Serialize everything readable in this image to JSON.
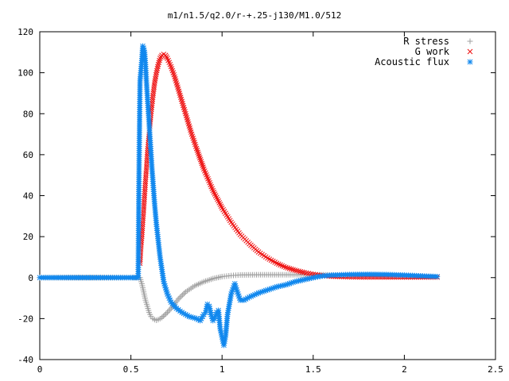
{
  "chart_data": {
    "type": "scatter",
    "title": "m1/n1.5/q2.0/r-+.25-j130/M1.0/512",
    "xlabel": "",
    "ylabel": "",
    "xlim": [
      0,
      2.5
    ],
    "ylim": [
      -40,
      120
    ],
    "xticks": [
      "0",
      "0.5",
      "1",
      "1.5",
      "2",
      "2.5"
    ],
    "yticks": [
      "-40",
      "-20",
      "0",
      "20",
      "40",
      "60",
      "80",
      "100",
      "120"
    ],
    "legend_position": "top-right",
    "grid": false,
    "series": [
      {
        "name": "R stress",
        "marker": "plus",
        "color": "#a0a0a0",
        "points": [
          [
            0.0,
            0
          ],
          [
            0.5,
            0
          ],
          [
            0.55,
            0
          ],
          [
            0.56,
            -3
          ],
          [
            0.57,
            -7
          ],
          [
            0.58,
            -11
          ],
          [
            0.59,
            -14
          ],
          [
            0.6,
            -17
          ],
          [
            0.61,
            -19
          ],
          [
            0.62,
            -20
          ],
          [
            0.63,
            -20.5
          ],
          [
            0.64,
            -20.8
          ],
          [
            0.65,
            -20.5
          ],
          [
            0.67,
            -19.5
          ],
          [
            0.7,
            -17
          ],
          [
            0.73,
            -14
          ],
          [
            0.76,
            -10.5
          ],
          [
            0.8,
            -7
          ],
          [
            0.85,
            -4
          ],
          [
            0.9,
            -2
          ],
          [
            0.95,
            -0.5
          ],
          [
            1.0,
            0.5
          ],
          [
            1.05,
            1.0
          ],
          [
            1.1,
            1.3
          ],
          [
            1.2,
            1.4
          ],
          [
            1.3,
            1.4
          ],
          [
            1.4,
            1.4
          ],
          [
            1.5,
            1.4
          ],
          [
            1.6,
            1.3
          ],
          [
            1.7,
            1.2
          ],
          [
            1.8,
            1.1
          ],
          [
            1.9,
            0.9
          ],
          [
            2.0,
            0.7
          ],
          [
            2.1,
            0.5
          ],
          [
            2.18,
            0.4
          ]
        ]
      },
      {
        "name": "G work",
        "marker": "cross",
        "color": "#ee1111",
        "points": [
          [
            0.55,
            7
          ],
          [
            0.555,
            15
          ],
          [
            0.56,
            20
          ],
          [
            0.565,
            27
          ],
          [
            0.57,
            33
          ],
          [
            0.575,
            40
          ],
          [
            0.58,
            47
          ],
          [
            0.585,
            53
          ],
          [
            0.59,
            60
          ],
          [
            0.595,
            65
          ],
          [
            0.6,
            70
          ],
          [
            0.605,
            75
          ],
          [
            0.61,
            80
          ],
          [
            0.615,
            84
          ],
          [
            0.62,
            88
          ],
          [
            0.63,
            95
          ],
          [
            0.64,
            100
          ],
          [
            0.65,
            104
          ],
          [
            0.66,
            107
          ],
          [
            0.67,
            108.5
          ],
          [
            0.68,
            109
          ],
          [
            0.69,
            108.5
          ],
          [
            0.7,
            107
          ],
          [
            0.72,
            103
          ],
          [
            0.74,
            98
          ],
          [
            0.76,
            92
          ],
          [
            0.78,
            86
          ],
          [
            0.8,
            80
          ],
          [
            0.83,
            71
          ],
          [
            0.86,
            63
          ],
          [
            0.9,
            53
          ],
          [
            0.95,
            42.5
          ],
          [
            1.0,
            34
          ],
          [
            1.05,
            27
          ],
          [
            1.1,
            21
          ],
          [
            1.15,
            16.5
          ],
          [
            1.2,
            12.5
          ],
          [
            1.25,
            9.5
          ],
          [
            1.3,
            7
          ],
          [
            1.35,
            5
          ],
          [
            1.4,
            3.6
          ],
          [
            1.45,
            2.5
          ],
          [
            1.5,
            1.6
          ],
          [
            1.55,
            1.0
          ],
          [
            1.6,
            0.6
          ],
          [
            1.7,
            0.3
          ],
          [
            1.8,
            0.2
          ],
          [
            1.9,
            0.2
          ],
          [
            2.0,
            0.2
          ],
          [
            2.1,
            0.2
          ],
          [
            2.18,
            0.2
          ]
        ]
      },
      {
        "name": "Acoustic flux",
        "marker": "star",
        "color": "#1188ee",
        "points": [
          [
            0.0,
            0
          ],
          [
            0.1,
            0
          ],
          [
            0.2,
            0
          ],
          [
            0.3,
            0
          ],
          [
            0.4,
            0
          ],
          [
            0.5,
            0
          ],
          [
            0.54,
            0
          ],
          [
            0.545,
            56
          ],
          [
            0.55,
            96
          ],
          [
            0.555,
            101
          ],
          [
            0.56,
            106
          ],
          [
            0.565,
            113
          ],
          [
            0.57,
            112
          ],
          [
            0.575,
            110
          ],
          [
            0.58,
            104
          ],
          [
            0.585,
            96
          ],
          [
            0.59,
            89
          ],
          [
            0.595,
            82
          ],
          [
            0.6,
            75
          ],
          [
            0.605,
            68
          ],
          [
            0.61,
            61
          ],
          [
            0.615,
            54
          ],
          [
            0.62,
            48
          ],
          [
            0.625,
            42
          ],
          [
            0.63,
            36
          ],
          [
            0.64,
            26
          ],
          [
            0.65,
            18
          ],
          [
            0.66,
            10
          ],
          [
            0.67,
            4
          ],
          [
            0.68,
            -2
          ],
          [
            0.7,
            -8
          ],
          [
            0.72,
            -12
          ],
          [
            0.75,
            -15
          ],
          [
            0.78,
            -17
          ],
          [
            0.82,
            -19
          ],
          [
            0.86,
            -20
          ],
          [
            0.88,
            -21
          ],
          [
            0.9,
            -18
          ],
          [
            0.91,
            -17
          ],
          [
            0.92,
            -13
          ],
          [
            0.93,
            -14
          ],
          [
            0.94,
            -18
          ],
          [
            0.95,
            -21
          ],
          [
            0.96,
            -20
          ],
          [
            0.97,
            -17
          ],
          [
            0.98,
            -16
          ],
          [
            0.99,
            -25
          ],
          [
            1.0,
            -29
          ],
          [
            1.01,
            -33
          ],
          [
            1.02,
            -28
          ],
          [
            1.03,
            -18
          ],
          [
            1.05,
            -8
          ],
          [
            1.07,
            -3
          ],
          [
            1.08,
            -6
          ],
          [
            1.1,
            -11
          ],
          [
            1.12,
            -11
          ],
          [
            1.15,
            -9.5
          ],
          [
            1.2,
            -7.5
          ],
          [
            1.25,
            -6
          ],
          [
            1.3,
            -4.5
          ],
          [
            1.35,
            -3.5
          ],
          [
            1.4,
            -2
          ],
          [
            1.45,
            -1
          ],
          [
            1.5,
            0
          ],
          [
            1.55,
            0.8
          ],
          [
            1.6,
            1.2
          ],
          [
            1.7,
            1.5
          ],
          [
            1.8,
            1.6
          ],
          [
            1.9,
            1.5
          ],
          [
            2.0,
            1.2
          ],
          [
            2.1,
            0.8
          ],
          [
            2.18,
            0.5
          ]
        ]
      }
    ]
  }
}
